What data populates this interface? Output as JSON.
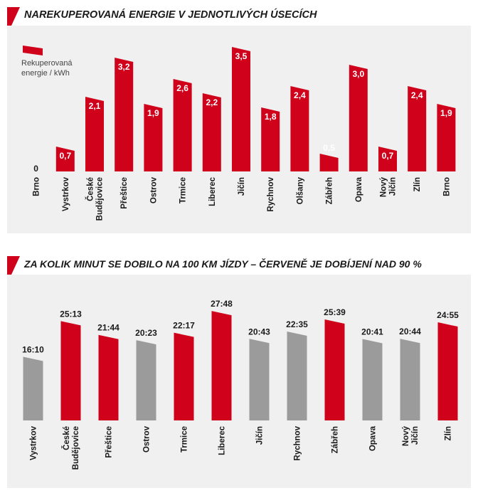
{
  "chart_data": [
    {
      "type": "bar",
      "title": "NAREKUPEROVANÁ ENERGIE V JEDNOTLIVÝCH ÚSECÍCH",
      "legend": {
        "label_line1": "Rekuperovaná",
        "label_line2": "energie / kWh",
        "position": "top-left"
      },
      "categories": [
        "Brno",
        "Vystrkov",
        "České Budějovice",
        "Přeštice",
        "Ostrov",
        "Trmice",
        "Liberec",
        "Jičín",
        "Rychnov",
        "Olšany",
        "Zábřeh",
        "Opava",
        "Nový Jičín",
        "Zlín",
        "Brno"
      ],
      "values": [
        0,
        0.7,
        2.1,
        3.2,
        1.9,
        2.6,
        2.2,
        3.5,
        1.8,
        2.4,
        0.5,
        3.0,
        0.7,
        2.4,
        1.9
      ],
      "value_labels": [
        "0",
        "0,7",
        "2,1",
        "3,2",
        "1,9",
        "2,6",
        "2,2",
        "3,5",
        "1,8",
        "2,4",
        "0,5",
        "3,0",
        "0,7",
        "2,4",
        "1,9"
      ],
      "bar_color": "#d0021b",
      "ylim": [
        0,
        3.5
      ],
      "grid": false
    },
    {
      "type": "bar",
      "title": "ZA KOLIK MINUT SE DOBILO NA 100 KM JÍZDY – ČERVENĚ JE DOBÍJENÍ NAD 90 %",
      "categories": [
        "Vystrkov",
        "České Budějovice",
        "Přeštice",
        "Ostrov",
        "Trmice",
        "Liberec",
        "Jičín",
        "Rychnov",
        "Zábřeh",
        "Opava",
        "Nový Jičín",
        "Zlín"
      ],
      "values_minutes": [
        16.17,
        25.22,
        21.73,
        20.38,
        22.28,
        27.8,
        20.72,
        22.58,
        25.65,
        20.68,
        20.73,
        24.92
      ],
      "value_labels": [
        "16:10",
        "25:13",
        "21:44",
        "20:23",
        "22:17",
        "27:48",
        "20:43",
        "22:35",
        "25:39",
        "20:41",
        "20:44",
        "24:55"
      ],
      "above_90": [
        false,
        true,
        true,
        false,
        true,
        true,
        false,
        false,
        true,
        false,
        false,
        true
      ],
      "red_color": "#d0021b",
      "gray_color": "#9b9b9b",
      "grid": false
    }
  ]
}
